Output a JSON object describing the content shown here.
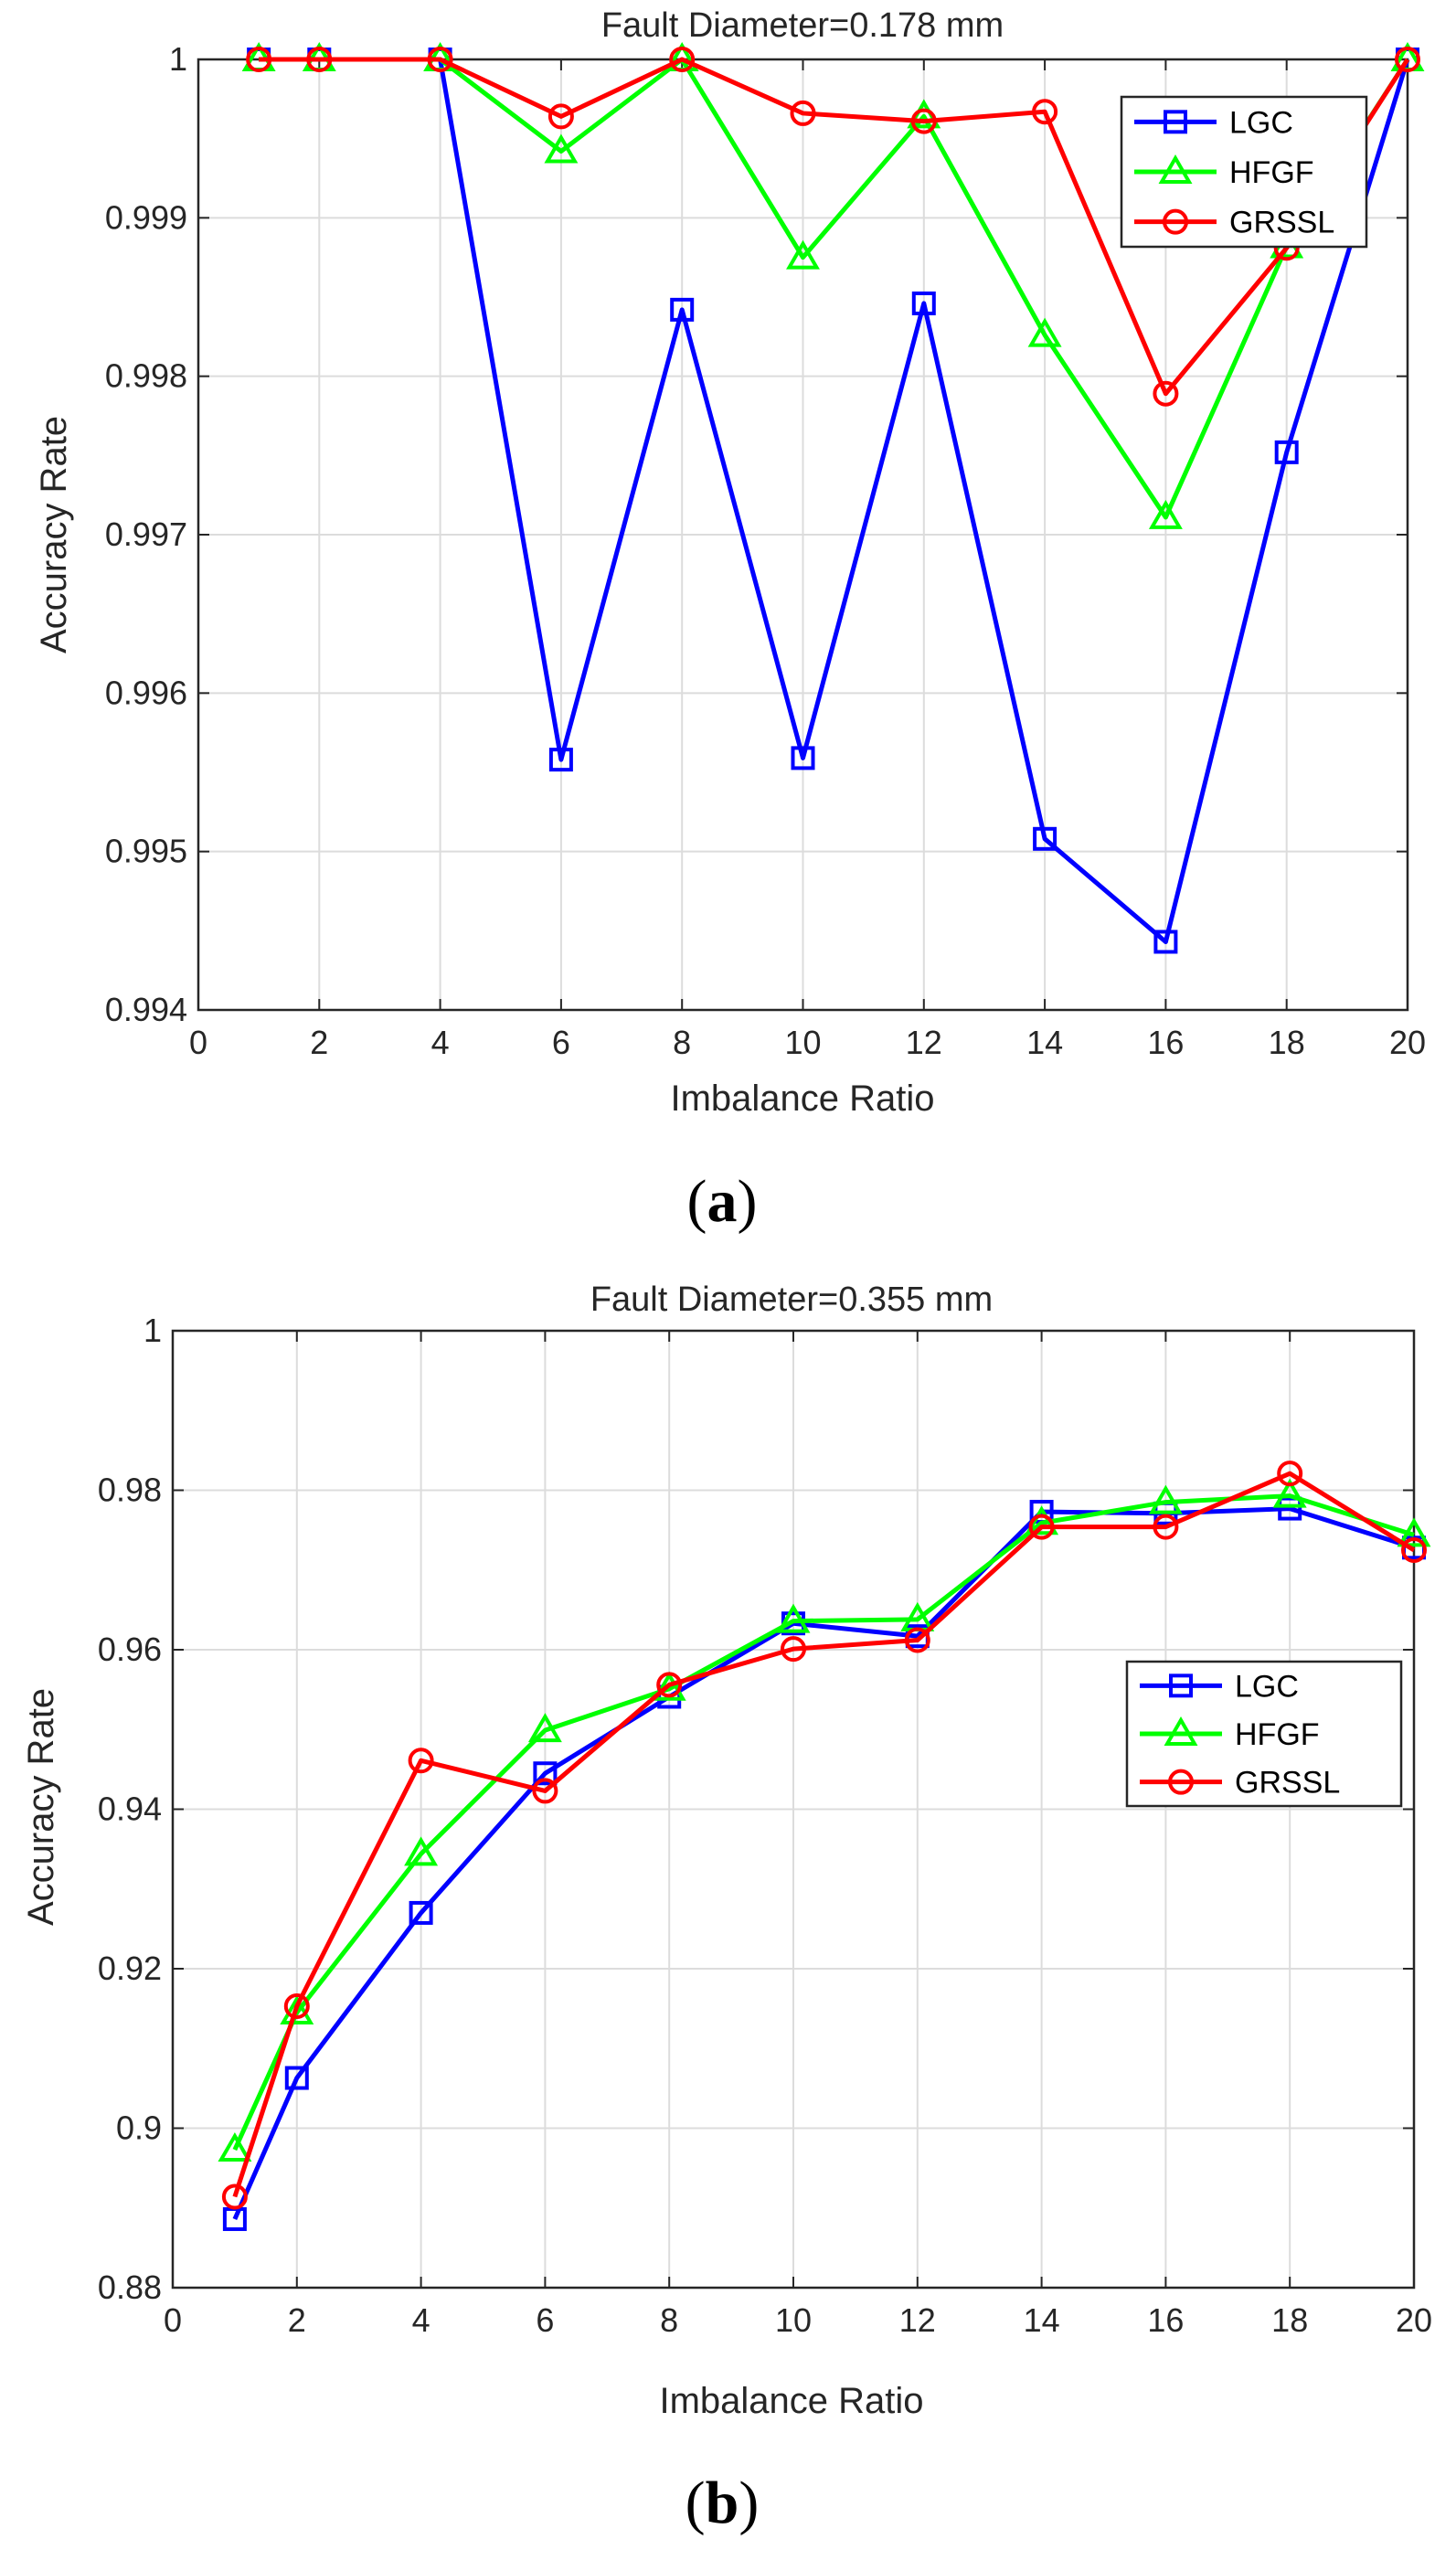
{
  "chart_data": [
    {
      "type": "line",
      "panel_label": {
        "open": "(",
        "letter": "a",
        "close": ")"
      },
      "title": "Fault Diameter=0.178 mm",
      "xlabel": "Imbalance Ratio",
      "ylabel": "Accuracy Rate",
      "xlim": [
        0,
        20
      ],
      "ylim": [
        0.994,
        1
      ],
      "xticks": [
        0,
        2,
        4,
        6,
        8,
        10,
        12,
        14,
        16,
        18,
        20
      ],
      "yticks": [
        0.994,
        0.995,
        0.996,
        0.997,
        0.998,
        0.999,
        1
      ],
      "ytick_labels": [
        "0.994",
        "0.995",
        "0.996",
        "0.997",
        "0.998",
        "0.999",
        "1"
      ],
      "grid": true,
      "legend_position": "top-right",
      "x": [
        1,
        2,
        4,
        6,
        8,
        10,
        12,
        14,
        16,
        18,
        20
      ],
      "series": [
        {
          "name": "LGC",
          "color": "#0000ff",
          "marker": "square",
          "values": [
            1,
            1,
            1,
            0.99558,
            0.99842,
            0.99559,
            0.99846,
            0.99508,
            0.99443,
            0.99752,
            1
          ]
        },
        {
          "name": "HFGF",
          "color": "#00ff00",
          "marker": "triangle",
          "values": [
            1,
            1,
            1,
            0.99942,
            1,
            0.99875,
            0.99964,
            0.99826,
            0.99711,
            0.99882,
            1
          ]
        },
        {
          "name": "GRSSL",
          "color": "#ff0000",
          "marker": "circle",
          "values": [
            1,
            1,
            1,
            0.99964,
            1,
            0.99966,
            0.99961,
            0.99967,
            0.99789,
            0.99881,
            1
          ]
        }
      ]
    },
    {
      "type": "line",
      "panel_label": {
        "open": "(",
        "letter": "b",
        "close": ")"
      },
      "title": "Fault Diameter=0.355 mm",
      "xlabel": "Imbalance Ratio",
      "ylabel": "Accuracy Rate",
      "xlim": [
        0,
        20
      ],
      "ylim": [
        0.88,
        1
      ],
      "xticks": [
        0,
        2,
        4,
        6,
        8,
        10,
        12,
        14,
        16,
        18,
        20
      ],
      "yticks": [
        0.88,
        0.9,
        0.92,
        0.94,
        0.96,
        0.98,
        1
      ],
      "ytick_labels": [
        "0.88",
        "0.9",
        "0.92",
        "0.94",
        "0.96",
        "0.98",
        "1"
      ],
      "grid": true,
      "legend_position": "right",
      "x": [
        1,
        2,
        4,
        6,
        8,
        10,
        12,
        14,
        16,
        18,
        20
      ],
      "series": [
        {
          "name": "LGC",
          "color": "#0000ff",
          "marker": "square",
          "values": [
            0.8886,
            0.9063,
            0.927,
            0.9445,
            0.9541,
            0.9633,
            0.9617,
            0.9773,
            0.9771,
            0.9777,
            0.9728
          ]
        },
        {
          "name": "HFGF",
          "color": "#00ff00",
          "marker": "triangle",
          "values": [
            0.8973,
            0.9145,
            0.9344,
            0.9499,
            0.9551,
            0.9636,
            0.9638,
            0.9759,
            0.9785,
            0.9793,
            0.9744
          ]
        },
        {
          "name": "GRSSL",
          "color": "#ff0000",
          "marker": "circle",
          "values": [
            0.8914,
            0.9153,
            0.9461,
            0.9423,
            0.9556,
            0.9601,
            0.9612,
            0.9754,
            0.9754,
            0.9821,
            0.9725
          ]
        }
      ]
    }
  ]
}
